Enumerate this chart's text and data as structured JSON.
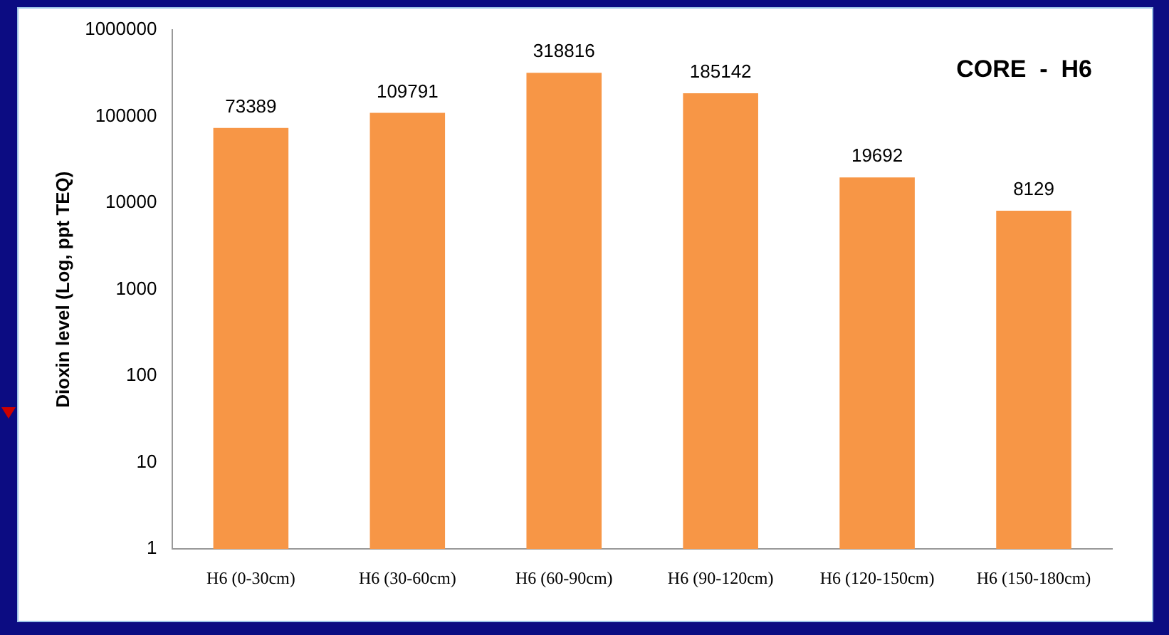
{
  "chart_data": {
    "type": "bar",
    "title": "CORE  -  H6",
    "ylabel": "Dioxin level (Log, ppt TEQ)",
    "categories": [
      "H6 (0-30cm)",
      "H6 (30-60cm)",
      "H6 (60-90cm)",
      "H6 (90-120cm)",
      "H6 (120-150cm)",
      "H6 (150-180cm)"
    ],
    "values": [
      73389,
      109791,
      318816,
      185142,
      19692,
      8129
    ],
    "color": "#f79646",
    "log": true,
    "ylim": [
      1,
      1000000
    ],
    "yticks": [
      1,
      10,
      100,
      1000,
      10000,
      100000,
      1000000
    ],
    "grid": false,
    "legend": false,
    "data_labels": true
  }
}
